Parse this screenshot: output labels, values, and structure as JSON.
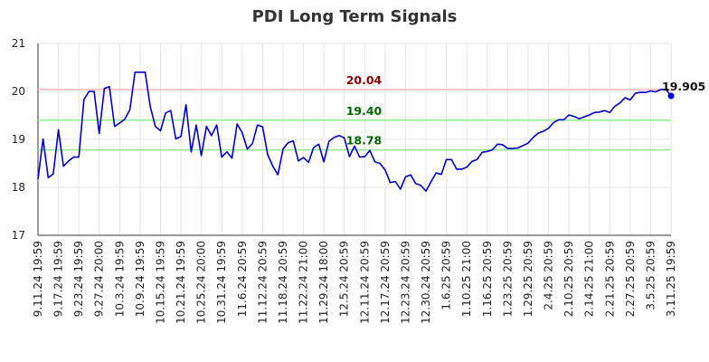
{
  "chart_data": {
    "type": "line",
    "title": "PDI Long Term Signals",
    "xlabel": "",
    "ylabel": "",
    "ylim": [
      17,
      21
    ],
    "yticks": [
      17,
      18,
      19,
      20,
      21
    ],
    "grid": true,
    "legend": "none",
    "x_tick_labels": [
      "9.11.24 19:59",
      "9.17.24 19:59",
      "9.23.24 19:59",
      "9.27.24 20:00",
      "10.3.24 19:59",
      "10.9.24 19:59",
      "10.15.24 19:59",
      "10.21.24 19:59",
      "10.25.24 20:00",
      "10.31.24 19:59",
      "11.6.24 20:59",
      "11.12.24 20:59",
      "11.18.24 20:59",
      "11.22.24 21:00",
      "11.29.24 18:00",
      "12.5.24 20:59",
      "12.11.24 20:59",
      "12.17.24 20:59",
      "12.23.24 20:59",
      "12.30.24 20:59",
      "1.6.25 20:59",
      "1.10.25 21:00",
      "1.16.25 20:59",
      "1.23.25 20:59",
      "1.29.25 20:59",
      "2.4.25 20:59",
      "2.10.25 20:59",
      "2.14.25 21:00",
      "2.21.25 20:59",
      "2.27.25 20:59",
      "3.5.25 20:59",
      "3.11.25 19:59"
    ],
    "series": [
      {
        "color": "#0000cc",
        "values": [
          18.17,
          19.01,
          18.2,
          18.28,
          19.2,
          18.44,
          18.55,
          18.63,
          18.63,
          19.83,
          20.0,
          20.0,
          19.12,
          20.06,
          20.1,
          19.27,
          19.34,
          19.42,
          19.62,
          20.4,
          20.4,
          20.4,
          19.68,
          19.27,
          19.18,
          19.55,
          19.6,
          19.01,
          19.06,
          19.72,
          18.74,
          19.3,
          18.66,
          19.27,
          19.08,
          19.3,
          18.63,
          18.74,
          18.61,
          19.32,
          19.14,
          18.8,
          18.91,
          19.3,
          19.26,
          18.68,
          18.44,
          18.26,
          18.8,
          18.93,
          18.97,
          18.55,
          18.62,
          18.52,
          18.83,
          18.9,
          18.53,
          18.96,
          19.04,
          19.08,
          19.03,
          18.64,
          18.86,
          18.63,
          18.64,
          18.77,
          18.53,
          18.5,
          18.36,
          18.1,
          18.12,
          17.96,
          18.22,
          18.26,
          18.08,
          18.04,
          17.92,
          18.12,
          18.3,
          18.27,
          18.58,
          18.58,
          18.38,
          18.38,
          18.42,
          18.54,
          18.58,
          18.73,
          18.75,
          18.78,
          18.9,
          18.89,
          18.81,
          18.81,
          18.82,
          18.87,
          18.92,
          19.04,
          19.13,
          19.17,
          19.23,
          19.35,
          19.41,
          19.41,
          19.51,
          19.48,
          19.43,
          19.47,
          19.51,
          19.56,
          19.57,
          19.6,
          19.56,
          19.69,
          19.76,
          19.87,
          19.82,
          19.96,
          19.98,
          19.98,
          20.01,
          19.99,
          20.04,
          20.04,
          19.905
        ]
      }
    ],
    "signals": [
      {
        "label": "20.04",
        "value": 20.04,
        "line_color": "#ffb6c1",
        "text_color": "#8b0000"
      },
      {
        "label": "19.40",
        "value": 19.4,
        "line_color": "#90ee90",
        "text_color": "#006400"
      },
      {
        "label": "18.78",
        "value": 18.78,
        "line_color": "#90ee90",
        "text_color": "#006400"
      }
    ],
    "last_value_label": "19.905",
    "last_point_color": "#0000ff"
  }
}
